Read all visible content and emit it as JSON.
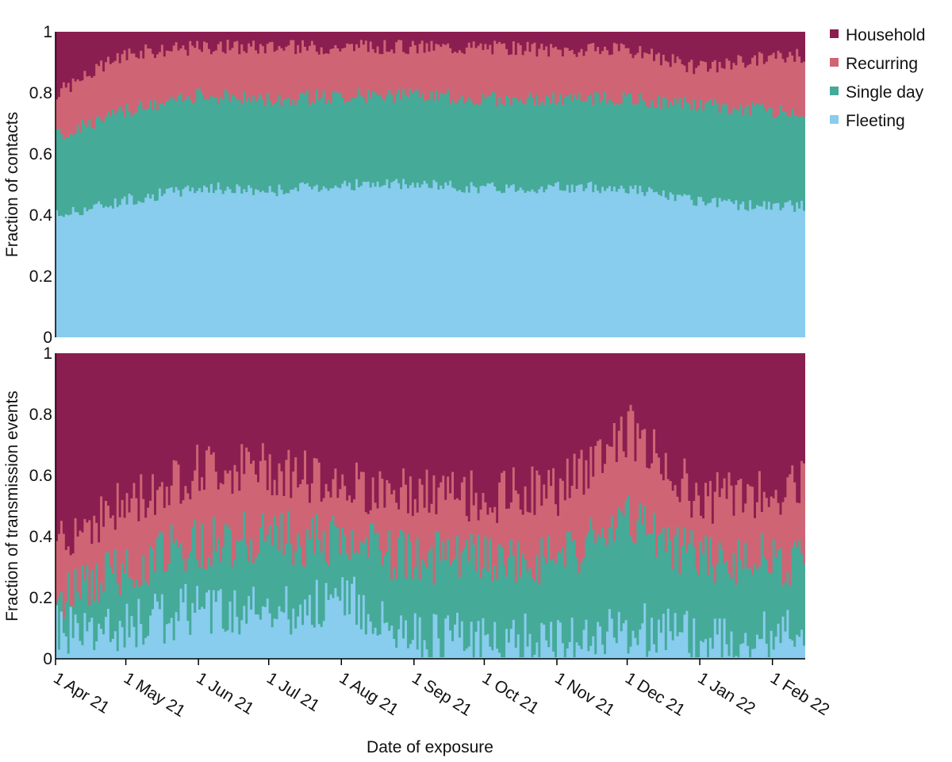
{
  "legend": [
    {
      "label": "Household",
      "color": "#8b1e50"
    },
    {
      "label": "Recurring",
      "color": "#cf6574"
    },
    {
      "label": "Single day",
      "color": "#45aa98"
    },
    {
      "label": "Fleeting",
      "color": "#88ccee"
    }
  ],
  "xlabel": "Date of exposure",
  "chart_data": [
    {
      "type": "area",
      "stacked": true,
      "ylabel": "Fraction of contacts",
      "ylim": [
        0,
        1
      ],
      "yticks": [
        "0",
        "0.2",
        "0.4",
        "0.6",
        "0.8",
        "1"
      ],
      "x_range": [
        "1 Apr 21",
        "15 Feb 22"
      ],
      "xticks": [
        "1 Apr 21",
        "1 May 21",
        "1 Jun 21",
        "1 Jul 21",
        "1 Aug 21",
        "1 Sep 21",
        "1 Oct 21",
        "1 Nov 21",
        "1 Dec 21",
        "1 Jan 22",
        "1 Feb 22"
      ],
      "series_order_bottom_to_top": [
        "Fleeting",
        "Single day",
        "Recurring",
        "Household"
      ],
      "cumulative_upper_bounds_by_month": {
        "dates": [
          "1 Apr 21",
          "1 May 21",
          "1 Jun 21",
          "1 Jul 21",
          "1 Aug 21",
          "1 Sep 21",
          "1 Oct 21",
          "1 Nov 21",
          "1 Dec 21",
          "1 Jan 22",
          "1 Feb 22"
        ],
        "Fleeting": [
          0.4,
          0.45,
          0.49,
          0.48,
          0.5,
          0.5,
          0.49,
          0.49,
          0.49,
          0.44,
          0.43
        ],
        "Single day": [
          0.66,
          0.74,
          0.79,
          0.78,
          0.79,
          0.79,
          0.78,
          0.78,
          0.78,
          0.76,
          0.74
        ],
        "Recurring": [
          0.8,
          0.93,
          0.95,
          0.95,
          0.95,
          0.95,
          0.95,
          0.94,
          0.94,
          0.88,
          0.92
        ],
        "Household": [
          1,
          1,
          1,
          1,
          1,
          1,
          1,
          1,
          1,
          1,
          1
        ]
      }
    },
    {
      "type": "area",
      "stacked": true,
      "ylabel": "Fraction of transmission events",
      "ylim": [
        0,
        1
      ],
      "yticks": [
        "0",
        "0.2",
        "0.4",
        "0.6",
        "0.8",
        "1"
      ],
      "x_range": [
        "1 Apr 21",
        "15 Feb 22"
      ],
      "xticks": [
        "1 Apr 21",
        "1 May 21",
        "1 Jun 21",
        "1 Jul 21",
        "1 Aug 21",
        "1 Sep 21",
        "1 Oct 21",
        "1 Nov 21",
        "1 Dec 21",
        "1 Jan 22",
        "1 Feb 22"
      ],
      "series_order_bottom_to_top": [
        "Fleeting",
        "Single day",
        "Recurring",
        "Household"
      ],
      "cumulative_upper_bounds_by_month": {
        "dates": [
          "1 Apr 21",
          "1 May 21",
          "1 Jun 21",
          "1 Jul 21",
          "1 Aug 21",
          "1 Sep 21",
          "1 Oct 21",
          "1 Nov 21",
          "1 Dec 21",
          "1 Jan 22",
          "1 Feb 22"
        ],
        "Fleeting": [
          0.1,
          0.1,
          0.17,
          0.15,
          0.2,
          0.07,
          0.06,
          0.06,
          0.1,
          0.07,
          0.07
        ],
        "Single day": [
          0.2,
          0.3,
          0.38,
          0.4,
          0.38,
          0.33,
          0.32,
          0.32,
          0.45,
          0.33,
          0.32
        ],
        "Recurring": [
          0.4,
          0.5,
          0.62,
          0.62,
          0.58,
          0.53,
          0.53,
          0.55,
          0.75,
          0.52,
          0.56
        ],
        "Household": [
          1,
          1,
          1,
          1,
          1,
          1,
          1,
          1,
          1,
          1,
          1
        ]
      }
    }
  ]
}
